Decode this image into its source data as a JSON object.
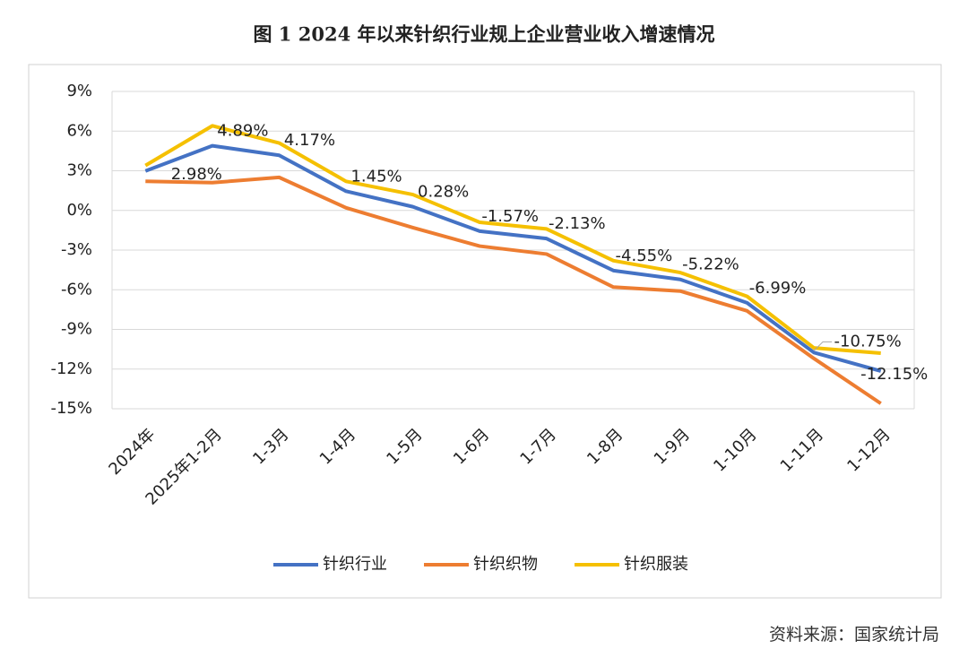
{
  "chart_data": {
    "type": "line",
    "title": "图 1   2024 年以来针织行业规上企业营业收入增速情况",
    "source": "资料来源：国家统计局",
    "categories": [
      "2024年",
      "2025年1-2月",
      "1-3月",
      "1-4月",
      "1-5月",
      "1-6月",
      "1-7月",
      "1-8月",
      "1-9月",
      "1-10月",
      "1-11月",
      "1-12月"
    ],
    "series": [
      {
        "name": "针织行业",
        "color": "#4472c4",
        "values": [
          2.98,
          4.89,
          4.17,
          1.45,
          0.28,
          -1.57,
          -2.13,
          -4.55,
          -5.22,
          -6.99,
          -10.75,
          -12.15
        ],
        "value_labels": [
          "2.98%",
          "4.89%",
          "4.17%",
          "1.45%",
          "0.28%",
          "-1.57%",
          "-2.13%",
          "-4.55%",
          "-5.22%",
          "-6.99%",
          "-10.75%",
          "-12.15%"
        ]
      },
      {
        "name": "针织织物",
        "color": "#ed7d31",
        "values": [
          2.2,
          2.1,
          2.5,
          0.2,
          -1.3,
          -2.7,
          -3.3,
          -5.8,
          -6.1,
          -7.6,
          -11.2,
          -14.6
        ]
      },
      {
        "name": "针织服装",
        "color": "#f5c000",
        "values": [
          3.4,
          6.4,
          5.1,
          2.2,
          1.2,
          -0.9,
          -1.4,
          -3.8,
          -4.7,
          -6.5,
          -10.4,
          -10.8
        ]
      }
    ],
    "ylim": [
      -15,
      9
    ],
    "yticks": [
      {
        "value": -15,
        "label": "-15%"
      },
      {
        "value": -12,
        "label": "-12%"
      },
      {
        "value": -9,
        "label": "-9%"
      },
      {
        "value": -6,
        "label": "-6%"
      },
      {
        "value": -3,
        "label": "-3%"
      },
      {
        "value": 0,
        "label": "0%"
      },
      {
        "value": 3,
        "label": "3%"
      },
      {
        "value": 6,
        "label": "6%"
      },
      {
        "value": 9,
        "label": "9%"
      }
    ],
    "grid": true,
    "legend": "bottom"
  }
}
